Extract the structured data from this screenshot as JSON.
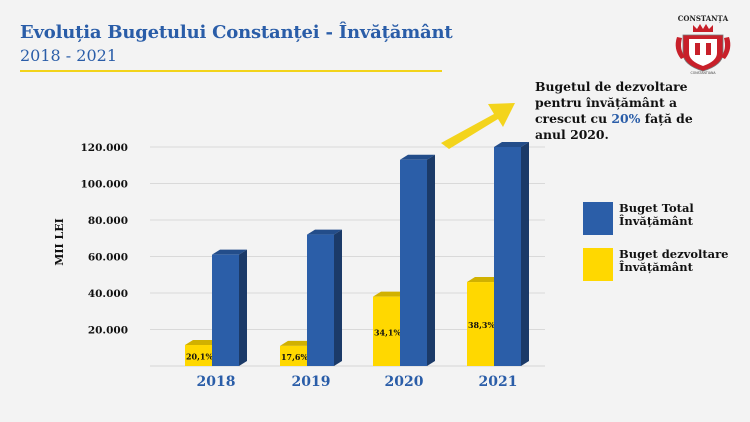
{
  "header": {
    "title": "Evoluția Bugetului Constanței - Învățământ",
    "subtitle": "2018 - 2021"
  },
  "logo": {
    "text_top": "CONSTANȚA",
    "text_bottom": "CONSTANTIANA"
  },
  "note": {
    "before": "Bugetul de dezvoltare pentru învățământ a crescut cu ",
    "highlight": "20%",
    "after": " față de anul 2020."
  },
  "colors": {
    "blue": "#2b5ea8",
    "yellow": "#ffd800",
    "accent_line": "#f2d31a",
    "arrow": "#f3d41c"
  },
  "chart_data": {
    "type": "bar",
    "title": "",
    "xlabel": "",
    "ylabel": "MII LEI",
    "categories": [
      "2018",
      "2019",
      "2020",
      "2021"
    ],
    "ylim": [
      0,
      120000
    ],
    "yticks": [
      20000,
      40000,
      60000,
      80000,
      100000,
      120000
    ],
    "ytick_labels": [
      "20.000",
      "40.000",
      "60.000",
      "80.000",
      "100.000",
      "120.000"
    ],
    "grid": true,
    "legend": "right",
    "series": [
      {
        "name": "Buget dezvoltare Învățământ",
        "color": "#ffd800",
        "values": [
          11500,
          11000,
          38000,
          46000
        ],
        "labels": [
          "20,1%",
          "17,6%",
          "34,1%",
          "38,3%"
        ]
      },
      {
        "name": "Buget Total Învățământ",
        "color": "#2b5ea8",
        "values": [
          61000,
          72000,
          113000,
          120000
        ]
      }
    ]
  }
}
